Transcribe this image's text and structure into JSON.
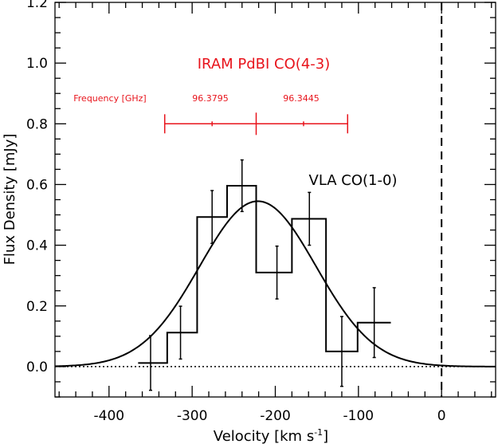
{
  "chart_data": {
    "type": "line",
    "xlabel": "Velocity [km s",
    "xlabel_sup": "-1",
    "xlabel_end": "]",
    "ylabel": "Flux Density [mJy]",
    "xlim": [
      -465,
      65
    ],
    "ylim": [
      -0.1,
      1.2
    ],
    "x_ticks": [
      -400,
      -300,
      -200,
      -100,
      0
    ],
    "x_tick_labels": [
      "-400",
      "-300",
      "-200",
      "-100",
      "0"
    ],
    "y_ticks": [
      0.0,
      0.2,
      0.4,
      0.6,
      0.8,
      1.0,
      1.2
    ],
    "y_tick_labels": [
      "0.0",
      "0.2",
      "0.4",
      "0.6",
      "0.8",
      "1.0",
      "1.2"
    ],
    "grid": false,
    "series": [
      {
        "style": "histogram-step",
        "color": "#000000",
        "bins": [
          {
            "x0": -365,
            "x1": -330,
            "y": 0.012,
            "err": 0.09
          },
          {
            "x0": -330,
            "x1": -294,
            "y": 0.112,
            "err": 0.087
          },
          {
            "x0": -294,
            "x1": -258,
            "y": 0.493,
            "err": 0.087
          },
          {
            "x0": -258,
            "x1": -223,
            "y": 0.596,
            "err": 0.085
          },
          {
            "x0": -223,
            "x1": -180,
            "y": 0.31,
            "err": 0.087
          },
          {
            "x0": -180,
            "x1": -139,
            "y": 0.487,
            "err": 0.087
          },
          {
            "x0": -139,
            "x1": -101,
            "y": 0.05,
            "err": 0.115
          },
          {
            "x0": -101,
            "x1": -61,
            "y": 0.145,
            "err": 0.115
          }
        ],
        "errbar_x": [
          -350,
          -314,
          -276,
          -240,
          -198,
          -159,
          -120,
          -81
        ]
      },
      {
        "style": "gaussian-fit",
        "color": "#000000",
        "center": -221,
        "amplitude": 0.545,
        "sigma": 70
      }
    ],
    "reference_lines": [
      {
        "axis": "x",
        "value": 0,
        "style": "dashed",
        "color": "#000000"
      },
      {
        "axis": "y",
        "value": 0,
        "style": "dotted",
        "color": "#000000"
      }
    ],
    "annotations": {
      "vla_label": "VLA CO(1-0)",
      "iram_label": "IRAM PdBI CO(4-3)",
      "frequency_label": "Frequency [GHz]",
      "freq_tick_1": "96.3795",
      "freq_tick_2": "96.3445",
      "accent_color": "#e8141c"
    },
    "frequency_scale": {
      "y": 0.8,
      "x_start": -333,
      "x_end": -113,
      "major_tick_x": -223,
      "minor_ticks_x": [
        -276,
        -166
      ]
    }
  }
}
